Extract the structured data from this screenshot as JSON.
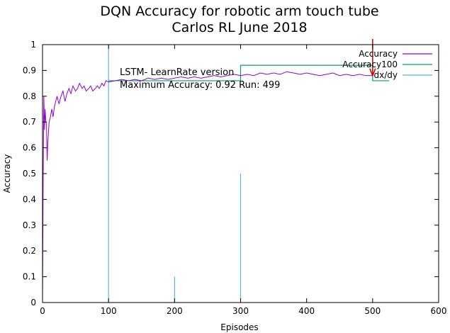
{
  "chart_data": {
    "type": "line",
    "title": [
      "DQN Accuracy for robotic arm touch tube",
      "Carlos RL June 2018"
    ],
    "xlabel": "Episodes",
    "ylabel": "Accuracy",
    "xlim": [
      0,
      600
    ],
    "ylim": [
      0,
      1
    ],
    "xticks": [
      0,
      100,
      200,
      300,
      400,
      500,
      600
    ],
    "xtick_labels": [
      "0",
      "100",
      "200",
      "300",
      "400",
      "500",
      "600"
    ],
    "yticks": [
      0,
      0.1,
      0.2,
      0.3,
      0.4,
      0.5,
      0.6,
      0.7,
      0.8,
      0.9,
      1
    ],
    "ytick_labels": [
      "0",
      "0.1",
      "0.2",
      "0.3",
      "0.4",
      "0.5",
      "0.6",
      "0.7",
      "0.8",
      "0.9",
      "1"
    ],
    "grid": false,
    "legend_position": "top-right",
    "annotations": [
      "LSTM- LearnRate version",
      "Maximum Accuracy: 0.92 Run: 499"
    ],
    "series": [
      {
        "name": "Accuracy",
        "color": "#9400d3",
        "style": "line",
        "x": [
          0,
          1,
          2,
          3,
          4,
          5,
          6,
          7,
          8,
          9,
          10,
          12,
          14,
          16,
          18,
          20,
          22,
          25,
          28,
          31,
          34,
          37,
          40,
          43,
          46,
          50,
          53,
          56,
          60,
          63,
          66,
          70,
          73,
          76,
          80,
          83,
          86,
          90,
          93,
          96,
          100,
          110,
          120,
          130,
          140,
          150,
          160,
          170,
          180,
          190,
          200,
          210,
          220,
          230,
          240,
          250,
          260,
          270,
          280,
          290,
          300,
          310,
          320,
          330,
          340,
          350,
          360,
          370,
          380,
          390,
          400,
          410,
          420,
          430,
          440,
          450,
          460,
          470,
          480,
          490,
          499
        ],
        "y": [
          0.0,
          0.5,
          0.8,
          0.67,
          0.75,
          0.7,
          0.69,
          0.55,
          0.62,
          0.66,
          0.7,
          0.72,
          0.75,
          0.72,
          0.76,
          0.78,
          0.8,
          0.77,
          0.8,
          0.82,
          0.78,
          0.81,
          0.83,
          0.81,
          0.84,
          0.82,
          0.83,
          0.85,
          0.83,
          0.84,
          0.82,
          0.83,
          0.84,
          0.82,
          0.83,
          0.84,
          0.83,
          0.85,
          0.84,
          0.86,
          0.855,
          0.86,
          0.865,
          0.86,
          0.865,
          0.86,
          0.87,
          0.865,
          0.87,
          0.865,
          0.87,
          0.875,
          0.87,
          0.875,
          0.87,
          0.875,
          0.88,
          0.875,
          0.88,
          0.885,
          0.88,
          0.885,
          0.88,
          0.89,
          0.885,
          0.89,
          0.885,
          0.895,
          0.89,
          0.885,
          0.89,
          0.885,
          0.88,
          0.885,
          0.89,
          0.88,
          0.885,
          0.88,
          0.885,
          0.88,
          0.88
        ]
      },
      {
        "name": "Accuracy100",
        "color": "#009e73",
        "style": "step",
        "x": [
          100,
          300,
          500,
          525
        ],
        "y": [
          0.86,
          0.92,
          0.86,
          0.86
        ]
      },
      {
        "name": "dx/dy",
        "color": "#56b4e9",
        "style": "impulse",
        "x": [
          100,
          200,
          300,
          500
        ],
        "y": [
          1.0,
          0.1,
          0.5,
          0.0
        ]
      }
    ],
    "marker": {
      "color": "#cc0000",
      "x": 500,
      "y_range": [
        0.88,
        1.0
      ],
      "arrowhead": true
    }
  }
}
